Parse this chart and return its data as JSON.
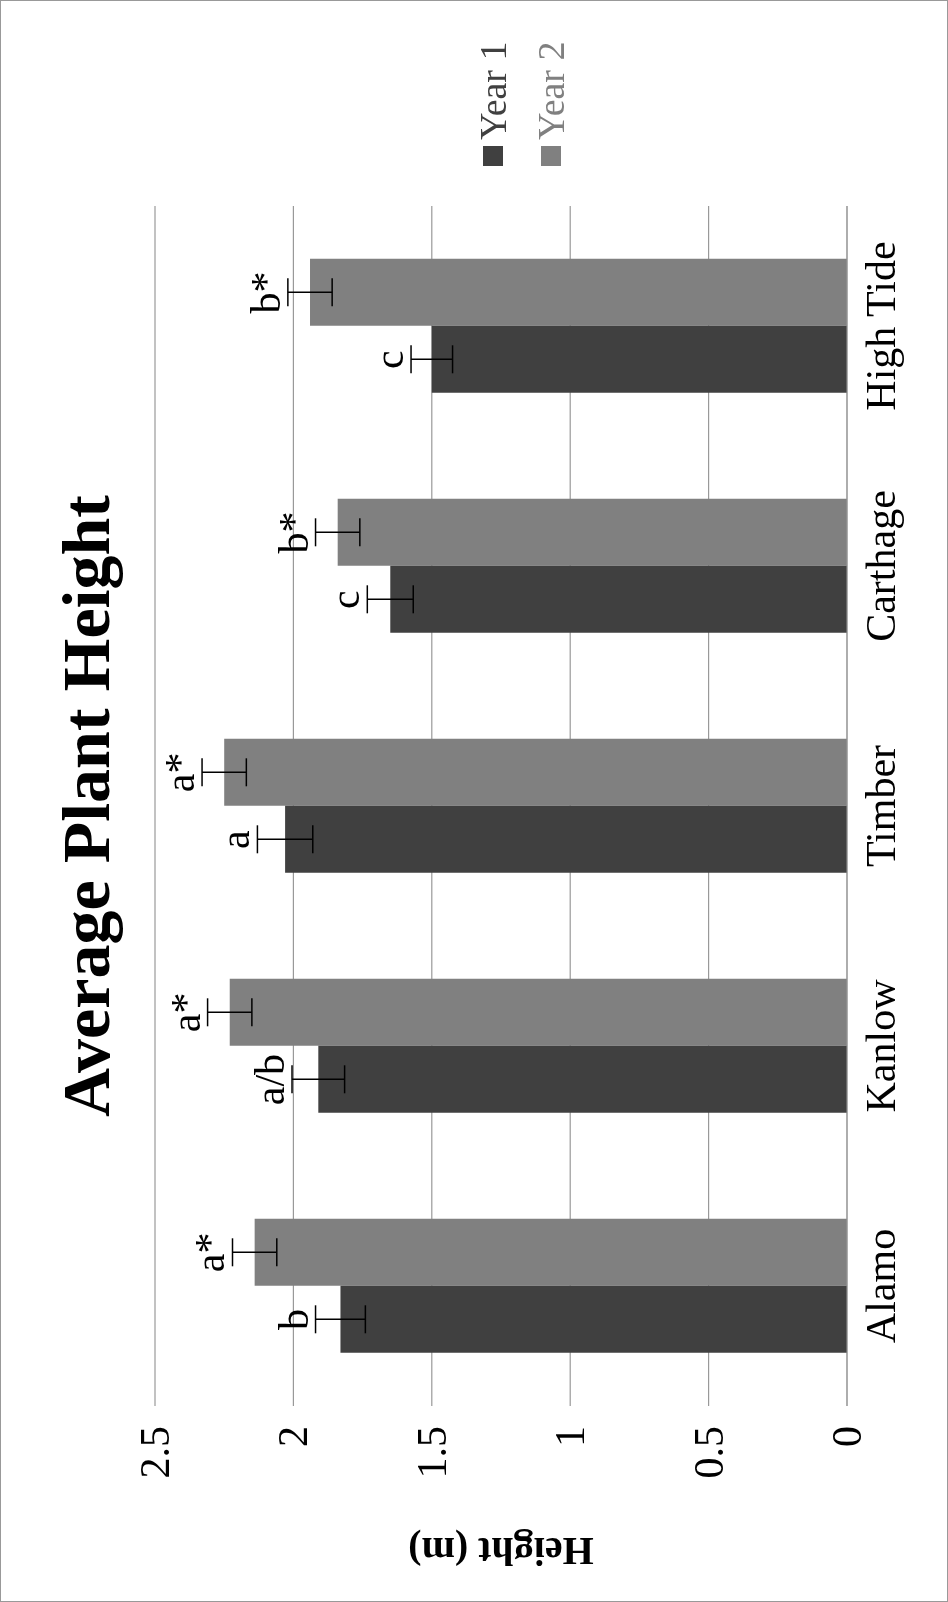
{
  "chart_data": {
    "type": "bar",
    "orientation": "horizontal",
    "title": "Average Plant Height",
    "xlabel": "Height (m)",
    "categories": [
      "High Tide",
      "Carthage",
      "Timber",
      "Kanlow",
      "Alamo"
    ],
    "series": [
      {
        "name": "Year 1",
        "color": "#404040",
        "values": [
          1.5,
          1.65,
          2.03,
          1.91,
          1.83
        ],
        "errors": [
          0.075,
          0.083,
          0.1,
          0.095,
          0.09
        ]
      },
      {
        "name": "Year 2",
        "color": "#808080",
        "values": [
          1.94,
          1.84,
          2.25,
          2.23,
          2.14
        ],
        "errors": [
          0.08,
          0.08,
          0.08,
          0.08,
          0.08
        ]
      }
    ],
    "xlim": [
      2.5,
      0
    ],
    "xticks": [
      2.5,
      2,
      1.5,
      1,
      0.5,
      0
    ],
    "grid": "x",
    "legend": "top right",
    "annotations": [
      {
        "text": "c",
        "x": 1.5,
        "y": "High Tide"
      },
      {
        "text": "b*",
        "x": 1.94,
        "y": "High Tide"
      },
      {
        "text": "c",
        "x": 1.65,
        "y": "Carthage"
      },
      {
        "text": "b*",
        "x": 1.84,
        "y": "Carthage"
      },
      {
        "text": "a",
        "x": 2.03,
        "y": "Timber"
      },
      {
        "text": "a*",
        "x": 2.25,
        "y": "Timber"
      },
      {
        "text": "a/b",
        "x": 1.91,
        "y": "Kanlow"
      },
      {
        "text": "a*",
        "x": 2.23,
        "y": "Kanlow"
      },
      {
        "text": "b",
        "x": 1.83,
        "y": "Alamo"
      },
      {
        "text": "a*",
        "x": 2.14,
        "y": "Alamo"
      }
    ]
  }
}
